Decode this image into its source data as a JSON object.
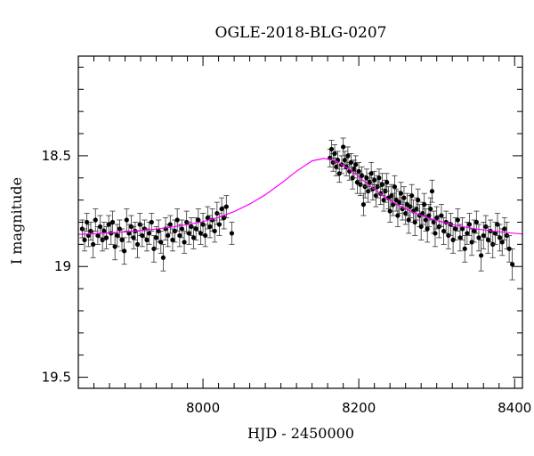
{
  "chart_data": {
    "type": "scatter",
    "title": "OGLE-2018-BLG-0207",
    "xlabel": "HJD - 2450000",
    "ylabel": "I magnitude",
    "xlim": [
      7840,
      8410
    ],
    "ylim": [
      19.55,
      18.05
    ],
    "y_inverted": true,
    "grid": false,
    "x_major_ticks": [
      8000,
      8200,
      8400
    ],
    "x_tick_labels": [
      "8000",
      "8200",
      "8400"
    ],
    "x_minor_step": 20,
    "y_major_ticks": [
      18.5,
      19,
      19.5
    ],
    "y_tick_labels": [
      "18.5",
      "19",
      "19.5"
    ],
    "y_minor_step": 0.1,
    "colors": {
      "points": "#000000",
      "model": "#ff00ff"
    },
    "model": {
      "name": "",
      "color": "#ff00ff",
      "x": [
        7840,
        7860,
        7880,
        7900,
        7920,
        7940,
        7960,
        7980,
        8000,
        8020,
        8040,
        8060,
        8080,
        8100,
        8120,
        8140,
        8155,
        8170,
        8190,
        8210,
        8230,
        8250,
        8270,
        8290,
        8310,
        8330,
        8350,
        8370,
        8390,
        8410
      ],
      "y": [
        18.855,
        18.852,
        18.848,
        18.844,
        18.838,
        18.831,
        18.822,
        18.811,
        18.797,
        18.778,
        18.752,
        18.718,
        18.676,
        18.625,
        18.57,
        18.523,
        18.512,
        18.522,
        18.565,
        18.624,
        18.678,
        18.722,
        18.756,
        18.782,
        18.802,
        18.818,
        18.83,
        18.839,
        18.847,
        18.853
      ]
    },
    "series": [
      {
        "name": "",
        "color": "#000000",
        "points": [
          [
            7845,
            18.83,
            0.04
          ],
          [
            7848,
            18.88,
            0.05
          ],
          [
            7851,
            18.8,
            0.04
          ],
          [
            7853,
            18.86,
            0.05
          ],
          [
            7856,
            18.84,
            0.04
          ],
          [
            7859,
            18.9,
            0.06
          ],
          [
            7862,
            18.79,
            0.05
          ],
          [
            7865,
            18.86,
            0.04
          ],
          [
            7868,
            18.82,
            0.05
          ],
          [
            7871,
            18.88,
            0.05
          ],
          [
            7873,
            18.84,
            0.04
          ],
          [
            7876,
            18.87,
            0.05
          ],
          [
            7879,
            18.81,
            0.04
          ],
          [
            7882,
            18.85,
            0.05
          ],
          [
            7884,
            18.8,
            0.05
          ],
          [
            7887,
            18.91,
            0.06
          ],
          [
            7890,
            18.86,
            0.05
          ],
          [
            7893,
            18.83,
            0.04
          ],
          [
            7896,
            18.88,
            0.05
          ],
          [
            7899,
            18.93,
            0.06
          ],
          [
            7902,
            18.79,
            0.05
          ],
          [
            7905,
            18.85,
            0.04
          ],
          [
            7908,
            18.82,
            0.05
          ],
          [
            7911,
            18.87,
            0.05
          ],
          [
            7913,
            18.84,
            0.04
          ],
          [
            7916,
            18.9,
            0.06
          ],
          [
            7919,
            18.81,
            0.05
          ],
          [
            7922,
            18.86,
            0.05
          ],
          [
            7925,
            18.83,
            0.04
          ],
          [
            7928,
            18.88,
            0.05
          ],
          [
            7931,
            18.85,
            0.05
          ],
          [
            7934,
            18.8,
            0.04
          ],
          [
            7937,
            18.92,
            0.06
          ],
          [
            7940,
            18.87,
            0.05
          ],
          [
            7943,
            18.84,
            0.05
          ],
          [
            7946,
            18.89,
            0.05
          ],
          [
            7949,
            18.96,
            0.06
          ],
          [
            7952,
            18.83,
            0.05
          ],
          [
            7955,
            18.86,
            0.05
          ],
          [
            7958,
            18.81,
            0.04
          ],
          [
            7961,
            18.88,
            0.05
          ],
          [
            7964,
            18.84,
            0.05
          ],
          [
            7967,
            18.79,
            0.05
          ],
          [
            7970,
            18.86,
            0.05
          ],
          [
            7973,
            18.83,
            0.04
          ],
          [
            7976,
            18.89,
            0.05
          ],
          [
            7979,
            18.8,
            0.05
          ],
          [
            7982,
            18.85,
            0.05
          ],
          [
            7985,
            18.82,
            0.04
          ],
          [
            7988,
            18.87,
            0.05
          ],
          [
            7991,
            18.83,
            0.05
          ],
          [
            7994,
            18.79,
            0.05
          ],
          [
            7997,
            18.85,
            0.05
          ],
          [
            8000,
            18.81,
            0.05
          ],
          [
            8003,
            18.86,
            0.05
          ],
          [
            8006,
            18.78,
            0.05
          ],
          [
            8009,
            18.82,
            0.05
          ],
          [
            8012,
            18.79,
            0.05
          ],
          [
            8015,
            18.84,
            0.05
          ],
          [
            8018,
            18.76,
            0.05
          ],
          [
            8021,
            18.81,
            0.05
          ],
          [
            8024,
            18.74,
            0.05
          ],
          [
            8027,
            18.78,
            0.05
          ],
          [
            8030,
            18.73,
            0.05
          ],
          [
            8037,
            18.85,
            0.05
          ],
          [
            8163,
            18.51,
            0.04
          ],
          [
            8165,
            18.47,
            0.04
          ],
          [
            8167,
            18.53,
            0.04
          ],
          [
            8169,
            18.49,
            0.04
          ],
          [
            8171,
            18.55,
            0.04
          ],
          [
            8173,
            18.52,
            0.04
          ],
          [
            8175,
            18.58,
            0.04
          ],
          [
            8178,
            18.54,
            0.04
          ],
          [
            8180,
            18.46,
            0.04
          ],
          [
            8182,
            18.52,
            0.04
          ],
          [
            8184,
            18.55,
            0.04
          ],
          [
            8186,
            18.5,
            0.04
          ],
          [
            8188,
            18.57,
            0.04
          ],
          [
            8190,
            18.53,
            0.04
          ],
          [
            8192,
            18.6,
            0.05
          ],
          [
            8194,
            18.56,
            0.04
          ],
          [
            8196,
            18.54,
            0.04
          ],
          [
            8198,
            18.62,
            0.05
          ],
          [
            8200,
            18.57,
            0.04
          ],
          [
            8202,
            18.63,
            0.05
          ],
          [
            8204,
            18.59,
            0.04
          ],
          [
            8206,
            18.72,
            0.05
          ],
          [
            8208,
            18.64,
            0.05
          ],
          [
            8210,
            18.6,
            0.04
          ],
          [
            8212,
            18.66,
            0.05
          ],
          [
            8214,
            18.62,
            0.04
          ],
          [
            8216,
            18.58,
            0.05
          ],
          [
            8218,
            18.65,
            0.05
          ],
          [
            8220,
            18.61,
            0.04
          ],
          [
            8222,
            18.68,
            0.05
          ],
          [
            8224,
            18.64,
            0.05
          ],
          [
            8226,
            18.6,
            0.04
          ],
          [
            8228,
            18.67,
            0.05
          ],
          [
            8230,
            18.63,
            0.05
          ],
          [
            8232,
            18.7,
            0.05
          ],
          [
            8234,
            18.66,
            0.05
          ],
          [
            8236,
            18.62,
            0.04
          ],
          [
            8238,
            18.69,
            0.05
          ],
          [
            8240,
            18.75,
            0.05
          ],
          [
            8242,
            18.68,
            0.05
          ],
          [
            8244,
            18.72,
            0.05
          ],
          [
            8246,
            18.64,
            0.05
          ],
          [
            8248,
            18.7,
            0.05
          ],
          [
            8250,
            18.77,
            0.05
          ],
          [
            8252,
            18.71,
            0.05
          ],
          [
            8254,
            18.67,
            0.05
          ],
          [
            8256,
            18.74,
            0.05
          ],
          [
            8258,
            18.69,
            0.05
          ],
          [
            8260,
            18.76,
            0.05
          ],
          [
            8262,
            18.72,
            0.05
          ],
          [
            8264,
            18.79,
            0.06
          ],
          [
            8266,
            18.73,
            0.05
          ],
          [
            8268,
            18.68,
            0.05
          ],
          [
            8270,
            18.75,
            0.05
          ],
          [
            8272,
            18.8,
            0.06
          ],
          [
            8274,
            18.74,
            0.05
          ],
          [
            8276,
            18.7,
            0.05
          ],
          [
            8278,
            18.77,
            0.05
          ],
          [
            8280,
            18.82,
            0.06
          ],
          [
            8282,
            18.76,
            0.05
          ],
          [
            8284,
            18.72,
            0.05
          ],
          [
            8286,
            18.79,
            0.05
          ],
          [
            8288,
            18.83,
            0.06
          ],
          [
            8290,
            18.77,
            0.05
          ],
          [
            8292,
            18.74,
            0.05
          ],
          [
            8294,
            18.66,
            0.05
          ],
          [
            8296,
            18.8,
            0.05
          ],
          [
            8298,
            18.85,
            0.06
          ],
          [
            8300,
            18.78,
            0.05
          ],
          [
            8303,
            18.82,
            0.05
          ],
          [
            8306,
            18.77,
            0.05
          ],
          [
            8309,
            18.84,
            0.06
          ],
          [
            8312,
            18.8,
            0.05
          ],
          [
            8315,
            18.86,
            0.06
          ],
          [
            8318,
            18.81,
            0.05
          ],
          [
            8321,
            18.88,
            0.06
          ],
          [
            8324,
            18.83,
            0.05
          ],
          [
            8327,
            18.79,
            0.05
          ],
          [
            8330,
            18.87,
            0.06
          ],
          [
            8333,
            18.83,
            0.05
          ],
          [
            8336,
            18.92,
            0.06
          ],
          [
            8339,
            18.85,
            0.05
          ],
          [
            8342,
            18.81,
            0.05
          ],
          [
            8345,
            18.89,
            0.06
          ],
          [
            8348,
            18.84,
            0.05
          ],
          [
            8351,
            18.8,
            0.05
          ],
          [
            8354,
            18.87,
            0.06
          ],
          [
            8357,
            18.95,
            0.07
          ],
          [
            8360,
            18.86,
            0.06
          ],
          [
            8363,
            18.82,
            0.05
          ],
          [
            8366,
            18.88,
            0.06
          ],
          [
            8369,
            18.84,
            0.05
          ],
          [
            8372,
            18.9,
            0.06
          ],
          [
            8375,
            18.85,
            0.05
          ],
          [
            8378,
            18.81,
            0.05
          ],
          [
            8381,
            18.87,
            0.06
          ],
          [
            8384,
            18.89,
            0.06
          ],
          [
            8387,
            18.83,
            0.05
          ],
          [
            8390,
            18.86,
            0.06
          ],
          [
            8397,
            18.99,
            0.07
          ],
          [
            8393,
            18.92,
            0.06
          ]
        ]
      }
    ]
  }
}
